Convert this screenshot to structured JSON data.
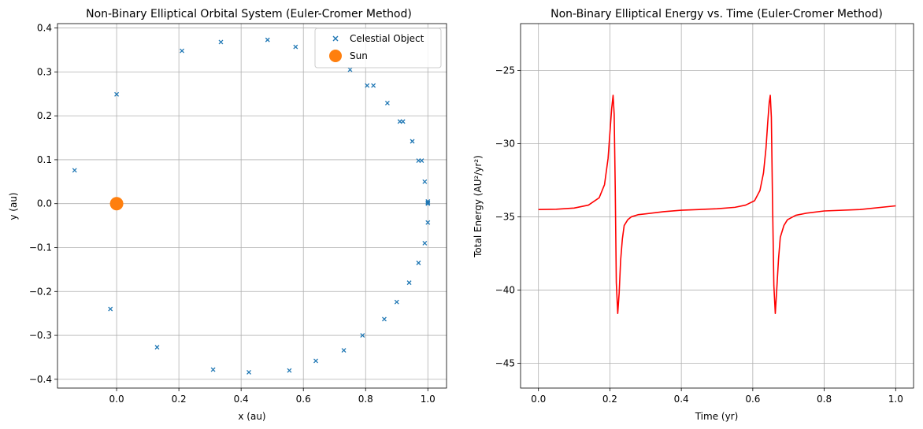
{
  "colors": {
    "object": "#1f77b4",
    "sun": "#ff7f0e",
    "energy": "#ff0000"
  },
  "chart_data": [
    {
      "type": "scatter",
      "title": "Non-Binary Elliptical Orbital System (Euler-Cromer Method)",
      "xlabel": "x (au)",
      "ylabel": "y (au)",
      "xlim": [
        -0.19,
        1.06
      ],
      "ylim": [
        -0.42,
        0.41
      ],
      "xticks": [
        0.0,
        0.2,
        0.4,
        0.6,
        0.8,
        1.0
      ],
      "xtick_labels": [
        "0.0",
        "0.2",
        "0.4",
        "0.6",
        "0.8",
        "1.0"
      ],
      "yticks": [
        -0.4,
        -0.3,
        -0.2,
        -0.1,
        0.0,
        0.1,
        0.2,
        0.3,
        0.4
      ],
      "ytick_labels": [
        "−0.4",
        "−0.3",
        "−0.2",
        "−0.1",
        "0.0",
        "0.1",
        "0.2",
        "0.3",
        "0.4"
      ],
      "grid": true,
      "legend_position": "top-right",
      "series": [
        {
          "name": "Celestial Object",
          "marker": "x",
          "points": [
            [
              1.0,
              0.0
            ],
            [
              1.0,
              0.005
            ],
            [
              0.99,
              0.05
            ],
            [
              0.98,
              0.098
            ],
            [
              0.97,
              0.098
            ],
            [
              0.95,
              0.142
            ],
            [
              0.92,
              0.187
            ],
            [
              0.91,
              0.187
            ],
            [
              0.87,
              0.229
            ],
            [
              0.825,
              0.269
            ],
            [
              0.805,
              0.269
            ],
            [
              0.75,
              0.305
            ],
            [
              0.575,
              0.357
            ],
            [
              0.485,
              0.373
            ],
            [
              0.335,
              0.368
            ],
            [
              0.21,
              0.348
            ],
            [
              0.0,
              0.249
            ],
            [
              -0.135,
              0.076
            ],
            [
              -0.02,
              -0.24
            ],
            [
              0.13,
              -0.327
            ],
            [
              0.31,
              -0.378
            ],
            [
              0.425,
              -0.384
            ],
            [
              0.555,
              -0.38
            ],
            [
              0.64,
              -0.358
            ],
            [
              0.73,
              -0.334
            ],
            [
              0.79,
              -0.3
            ],
            [
              0.86,
              -0.263
            ],
            [
              0.9,
              -0.224
            ],
            [
              0.94,
              -0.18
            ],
            [
              0.97,
              -0.135
            ],
            [
              0.99,
              -0.09
            ],
            [
              1.0,
              -0.043
            ],
            [
              1.0,
              0.002
            ]
          ]
        },
        {
          "name": "Sun",
          "marker": "o",
          "points": [
            [
              0.0,
              0.0
            ]
          ]
        }
      ]
    },
    {
      "type": "line",
      "title": "Non-Binary Elliptical Energy vs. Time (Euler-Cromer Method)",
      "xlabel": "Time (yr)",
      "ylabel": "Total Energy (AU²/yr²)",
      "xlim": [
        -0.05,
        1.05
      ],
      "ylim": [
        -46.7,
        -21.8
      ],
      "xticks": [
        0.0,
        0.2,
        0.4,
        0.6,
        0.8,
        1.0
      ],
      "xtick_labels": [
        "0.0",
        "0.2",
        "0.4",
        "0.6",
        "0.8",
        "1.0"
      ],
      "yticks": [
        -45,
        -40,
        -35,
        -30,
        -25
      ],
      "ytick_labels": [
        "−45",
        "−40",
        "−35",
        "−30",
        "−25"
      ],
      "grid": true,
      "series": [
        {
          "x": [
            0.0,
            0.05,
            0.1,
            0.14,
            0.17,
            0.185,
            0.195,
            0.2,
            0.205,
            0.209,
            0.212,
            0.215,
            0.218,
            0.222,
            0.226,
            0.23,
            0.235,
            0.24,
            0.25,
            0.26,
            0.28,
            0.3,
            0.35,
            0.4,
            0.45,
            0.5,
            0.55,
            0.58,
            0.605,
            0.62,
            0.63,
            0.637,
            0.642,
            0.646,
            0.649,
            0.652,
            0.655,
            0.659,
            0.663,
            0.667,
            0.672,
            0.677,
            0.687,
            0.697,
            0.72,
            0.75,
            0.8,
            0.9,
            1.0
          ],
          "values": [
            -34.5,
            -34.48,
            -34.4,
            -34.2,
            -33.7,
            -32.8,
            -31.0,
            -29.3,
            -27.6,
            -26.7,
            -28.0,
            -33.0,
            -39.5,
            -41.6,
            -40.2,
            -38.0,
            -36.5,
            -35.6,
            -35.2,
            -35.0,
            -34.85,
            -34.8,
            -34.65,
            -34.55,
            -34.5,
            -34.45,
            -34.35,
            -34.2,
            -33.9,
            -33.2,
            -32.0,
            -30.3,
            -28.5,
            -27.2,
            -26.7,
            -28.2,
            -33.5,
            -39.7,
            -41.6,
            -40.0,
            -37.9,
            -36.4,
            -35.6,
            -35.2,
            -34.9,
            -34.75,
            -34.6,
            -34.5,
            -34.25
          ]
        }
      ]
    }
  ]
}
